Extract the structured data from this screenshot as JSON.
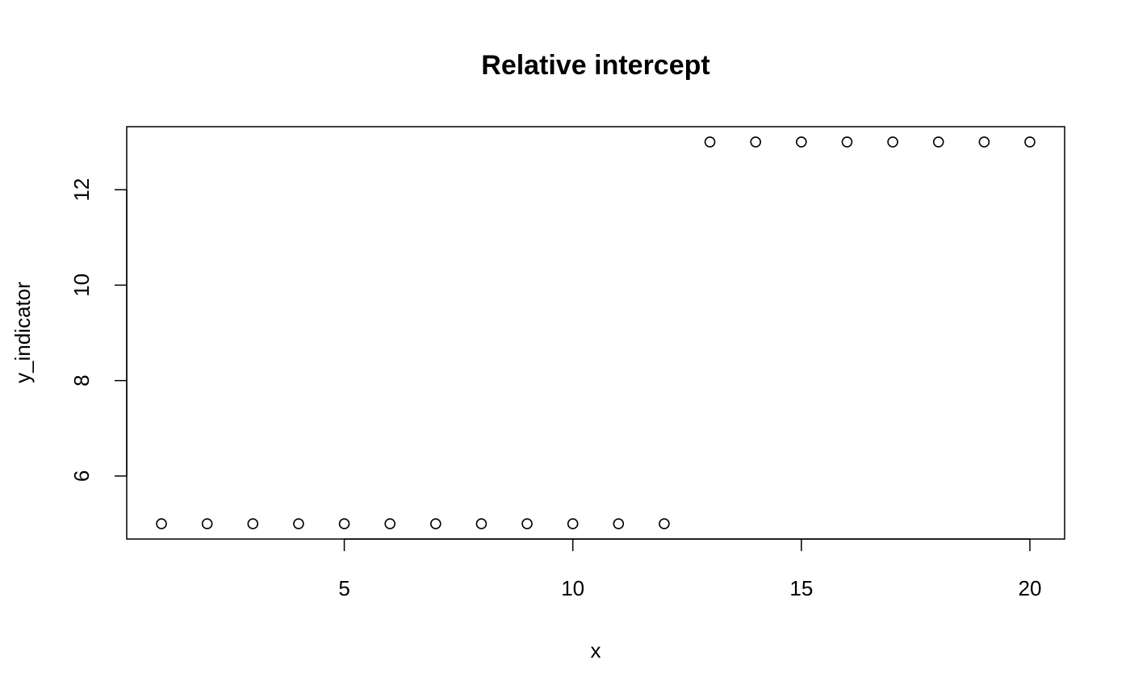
{
  "chart_data": {
    "type": "scatter",
    "title": "Relative intercept",
    "xlabel": "x",
    "ylabel": "y_indicator",
    "xlim": [
      0.24,
      20.76
    ],
    "ylim": [
      4.68,
      13.32
    ],
    "x_ticks": [
      5,
      10,
      15,
      20
    ],
    "x_tick_labels": [
      "5",
      "10",
      "15",
      "20"
    ],
    "y_ticks": [
      6,
      8,
      10,
      12
    ],
    "y_tick_labels": [
      "6",
      "8",
      "10",
      "12"
    ],
    "grid": false,
    "legend": "none",
    "marker": "open-circle",
    "point_color": "#000000",
    "series": [
      {
        "x": [
          1,
          2,
          3,
          4,
          5,
          6,
          7,
          8,
          9,
          10,
          11,
          12,
          13,
          14,
          15,
          16,
          17,
          18,
          19,
          20
        ],
        "y": [
          5,
          5,
          5,
          5,
          5,
          5,
          5,
          5,
          5,
          5,
          5,
          5,
          13,
          13,
          13,
          13,
          13,
          13,
          13,
          13
        ]
      }
    ]
  }
}
